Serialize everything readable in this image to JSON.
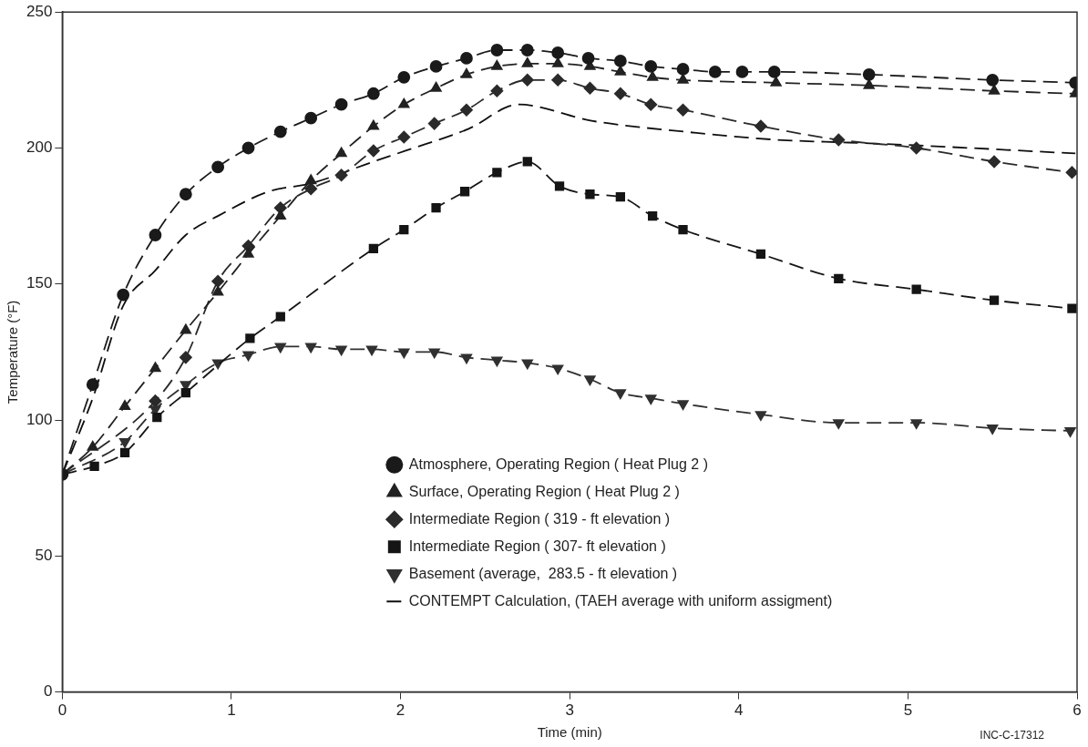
{
  "chart_data": {
    "type": "line",
    "xlabel": "Time (min)",
    "ylabel": "Temperature (°F)",
    "xlim": [
      0,
      6
    ],
    "xticks": [
      0,
      1,
      2,
      3,
      4,
      5,
      6
    ],
    "ylim": [
      0,
      250
    ],
    "yticks": [
      0,
      50,
      100,
      150,
      200,
      250
    ],
    "grid": false,
    "legend": "bottom",
    "annotations": [
      "INC-C-17312"
    ],
    "series": [
      {
        "name": "Atmosphere, Operating Region ( Heat Plug 2 )",
        "color": "#1a1a1a",
        "marker": "circle",
        "line_style": "dashed",
        "x": [
          0,
          0.18,
          0.36,
          0.55,
          0.73,
          0.92,
          1.1,
          1.29,
          1.47,
          1.65,
          1.84,
          2.02,
          2.21,
          2.39,
          2.57,
          2.75,
          2.93,
          3.11,
          3.3,
          3.48,
          3.67,
          3.86,
          4.02,
          4.21,
          4.77,
          5.5,
          5.99
        ],
        "values": [
          80,
          113,
          146,
          168,
          183,
          193,
          200,
          206,
          211,
          216,
          220,
          226,
          230,
          233,
          236,
          236,
          235,
          233,
          232,
          230,
          229,
          228,
          228,
          228,
          227,
          225,
          224
        ]
      },
      {
        "name": "Surface, Operating Region ( Heat Plug 2 )",
        "color": "#222222",
        "marker": "triangle",
        "line_style": "dashed",
        "x": [
          0,
          0.18,
          0.37,
          0.55,
          0.73,
          0.92,
          1.1,
          1.29,
          1.47,
          1.65,
          1.84,
          2.02,
          2.21,
          2.39,
          2.57,
          2.75,
          2.93,
          3.12,
          3.3,
          3.49,
          3.67,
          4.22,
          4.77,
          5.51,
          5.99
        ],
        "values": [
          80,
          90,
          105,
          119,
          133,
          147,
          161,
          175,
          188,
          198,
          208,
          216,
          222,
          227,
          230,
          231,
          231,
          230,
          228,
          226,
          225,
          224,
          223,
          221,
          220
        ]
      },
      {
        "name": "Intermediate Region ( 319 - ft elevation )",
        "color": "#2a2a2a",
        "marker": "diamond",
        "line_style": "dashed",
        "x": [
          0,
          0.55,
          0.73,
          0.92,
          1.1,
          1.29,
          1.47,
          1.65,
          1.84,
          2.02,
          2.2,
          2.39,
          2.57,
          2.75,
          2.93,
          3.12,
          3.3,
          3.48,
          3.67,
          4.13,
          4.59,
          5.05,
          5.51,
          5.97
        ],
        "values": [
          80,
          107,
          123,
          151,
          164,
          178,
          185,
          190,
          199,
          204,
          209,
          214,
          221,
          225,
          225,
          222,
          220,
          216,
          214,
          208,
          203,
          200,
          195,
          191
        ]
      },
      {
        "name": "Intermediate Region ( 307- ft elevation )",
        "color": "#151515",
        "marker": "square",
        "line_style": "dashed",
        "x": [
          0,
          0.19,
          0.37,
          0.56,
          0.73,
          1.11,
          1.29,
          1.84,
          2.02,
          2.21,
          2.38,
          2.57,
          2.75,
          2.94,
          3.12,
          3.3,
          3.49,
          3.67,
          4.13,
          4.59,
          5.05,
          5.51,
          5.97
        ],
        "values": [
          80,
          83,
          88,
          101,
          110,
          130,
          138,
          163,
          170,
          178,
          184,
          191,
          195,
          186,
          183,
          182,
          175,
          170,
          161,
          152,
          148,
          144,
          141
        ]
      },
      {
        "name": "Basement (average,  283.5 - ft elevation )",
        "color": "#303030",
        "marker": "triangle-down",
        "line_style": "dashed",
        "x": [
          0,
          0.37,
          0.55,
          0.73,
          0.92,
          1.1,
          1.29,
          1.47,
          1.65,
          1.83,
          2.02,
          2.2,
          2.39,
          2.57,
          2.75,
          2.93,
          3.12,
          3.3,
          3.48,
          3.67,
          4.13,
          4.59,
          5.05,
          5.5,
          5.96
        ],
        "values": [
          80,
          92,
          104,
          113,
          121,
          124,
          127,
          127,
          126,
          126,
          125,
          125,
          123,
          122,
          121,
          119,
          115,
          110,
          108,
          106,
          102,
          99,
          99,
          97,
          96
        ]
      },
      {
        "name": "CONTEMPT Calculation, (TAEH average with uniform assigment)",
        "color": "#0f0f0f",
        "marker": "none",
        "line_style": "dashed",
        "x": [
          0,
          0.18,
          0.36,
          0.55,
          0.73,
          0.92,
          1.22,
          1.47,
          1.84,
          2.03,
          2.4,
          2.7,
          3.13,
          3.68,
          4.23,
          4.65,
          5.04,
          5.99
        ],
        "values": [
          80,
          108,
          142,
          155,
          168,
          175,
          184,
          187,
          195,
          199,
          207,
          216,
          210,
          206,
          203,
          202,
          201,
          198
        ]
      }
    ]
  }
}
